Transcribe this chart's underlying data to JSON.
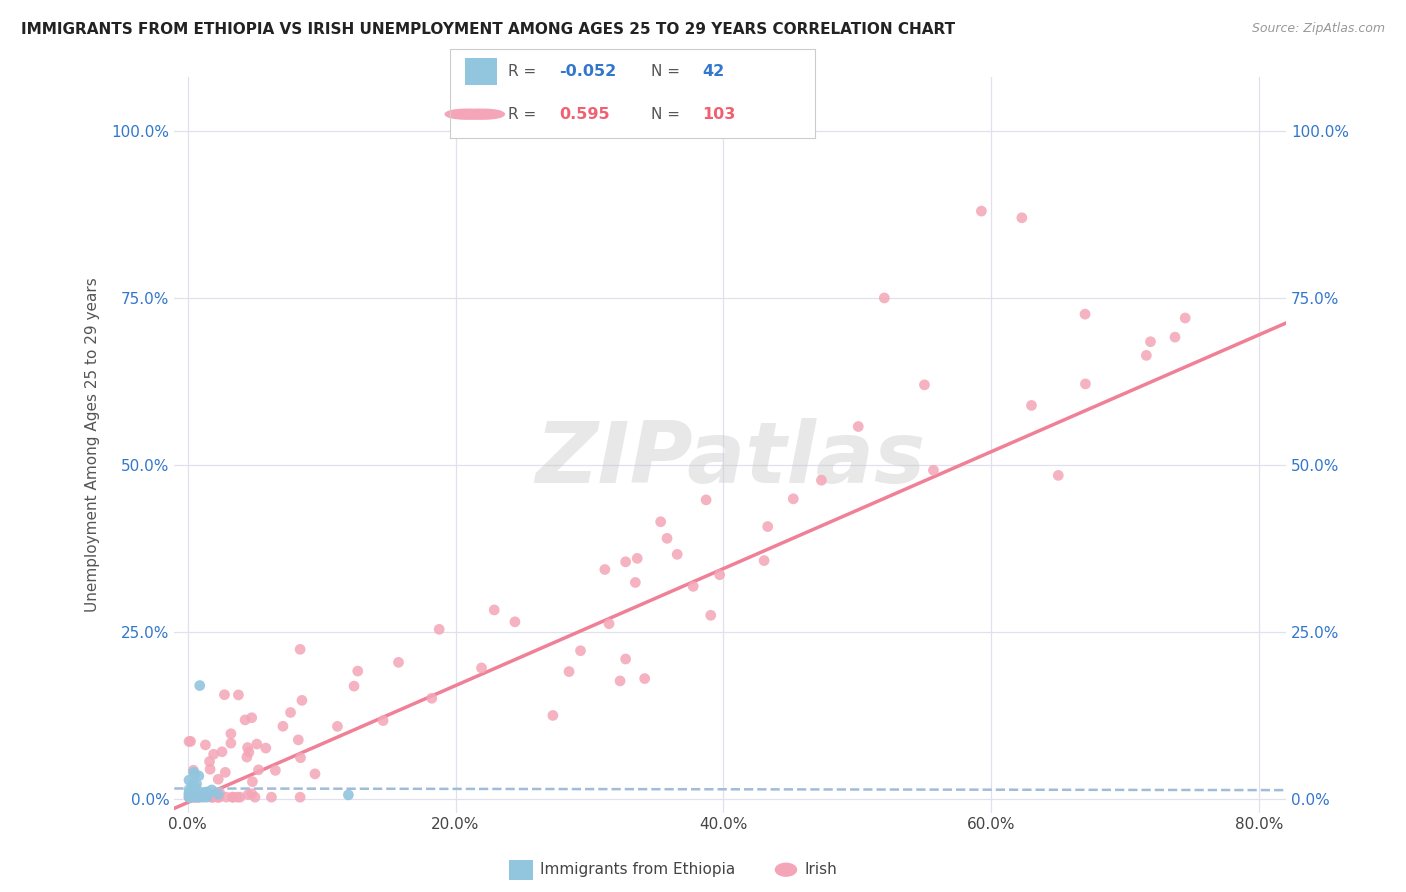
{
  "title": "IMMIGRANTS FROM ETHIOPIA VS IRISH UNEMPLOYMENT AMONG AGES 25 TO 29 YEARS CORRELATION CHART",
  "source": "Source: ZipAtlas.com",
  "ylabel": "Unemployment Among Ages 25 to 29 years",
  "x_tick_labels": [
    "0.0%",
    "20.0%",
    "40.0%",
    "60.0%",
    "80.0%"
  ],
  "x_tick_values": [
    0.0,
    0.2,
    0.4,
    0.6,
    0.8
  ],
  "y_tick_labels": [
    "0.0%",
    "25.0%",
    "50.0%",
    "75.0%",
    "100.0%"
  ],
  "y_tick_values": [
    0.0,
    0.25,
    0.5,
    0.75,
    1.0
  ],
  "xlim": [
    -0.01,
    0.82
  ],
  "ylim": [
    -0.02,
    1.08
  ],
  "legend_labels": [
    "Immigrants from Ethiopia",
    "Irish"
  ],
  "series1_color": "#92c5de",
  "series2_color": "#f4a6b8",
  "series1_line_color": "#aaccee",
  "series2_line_color": "#f08096",
  "R1": -0.052,
  "N1": 42,
  "R2": 0.595,
  "N2": 103,
  "background_color": "#ffffff",
  "grid_color": "#e0e0ee",
  "watermark": "ZIPatlas"
}
